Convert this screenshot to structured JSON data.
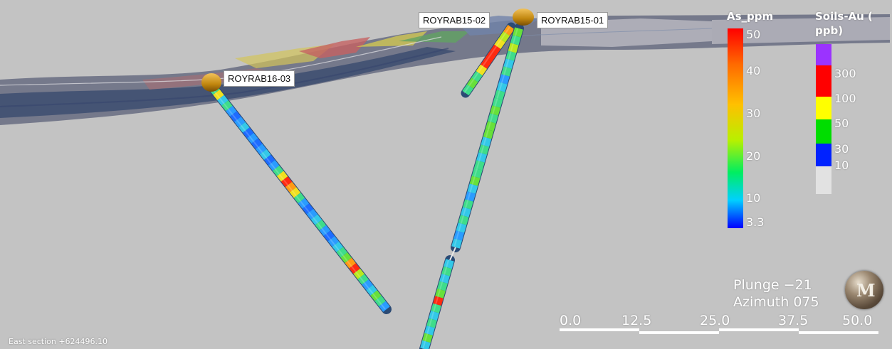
{
  "drillholes": [
    {
      "label": "ROYRAB15-02"
    },
    {
      "label": "ROYRAB15-01"
    },
    {
      "label": "ROYRAB16-03"
    }
  ],
  "legend_as": {
    "title": "As_ppm",
    "labels": [
      "50",
      "40",
      "30",
      "20",
      "10",
      "3.3"
    ]
  },
  "legend_soils": {
    "title_line1": "Soils-Au (",
    "title_line2": "ppb)",
    "labels": [
      "300",
      "100",
      "50",
      "30",
      "10"
    ],
    "colors": [
      "#9b33ff",
      "#ff0000",
      "#ffff00",
      "#00dd00",
      "#0022ff",
      "#e2e2e2"
    ]
  },
  "orientation": {
    "plunge": "Plunge −21",
    "azimuth": "Azimuth 075"
  },
  "scale_bar": {
    "labels": [
      "0.0",
      "12.5",
      "25.0",
      "37.5",
      "50.0"
    ]
  },
  "section_label": "East section +624496.10",
  "colors": {
    "background": "#c3c3c3",
    "collar": "#c08a10"
  }
}
